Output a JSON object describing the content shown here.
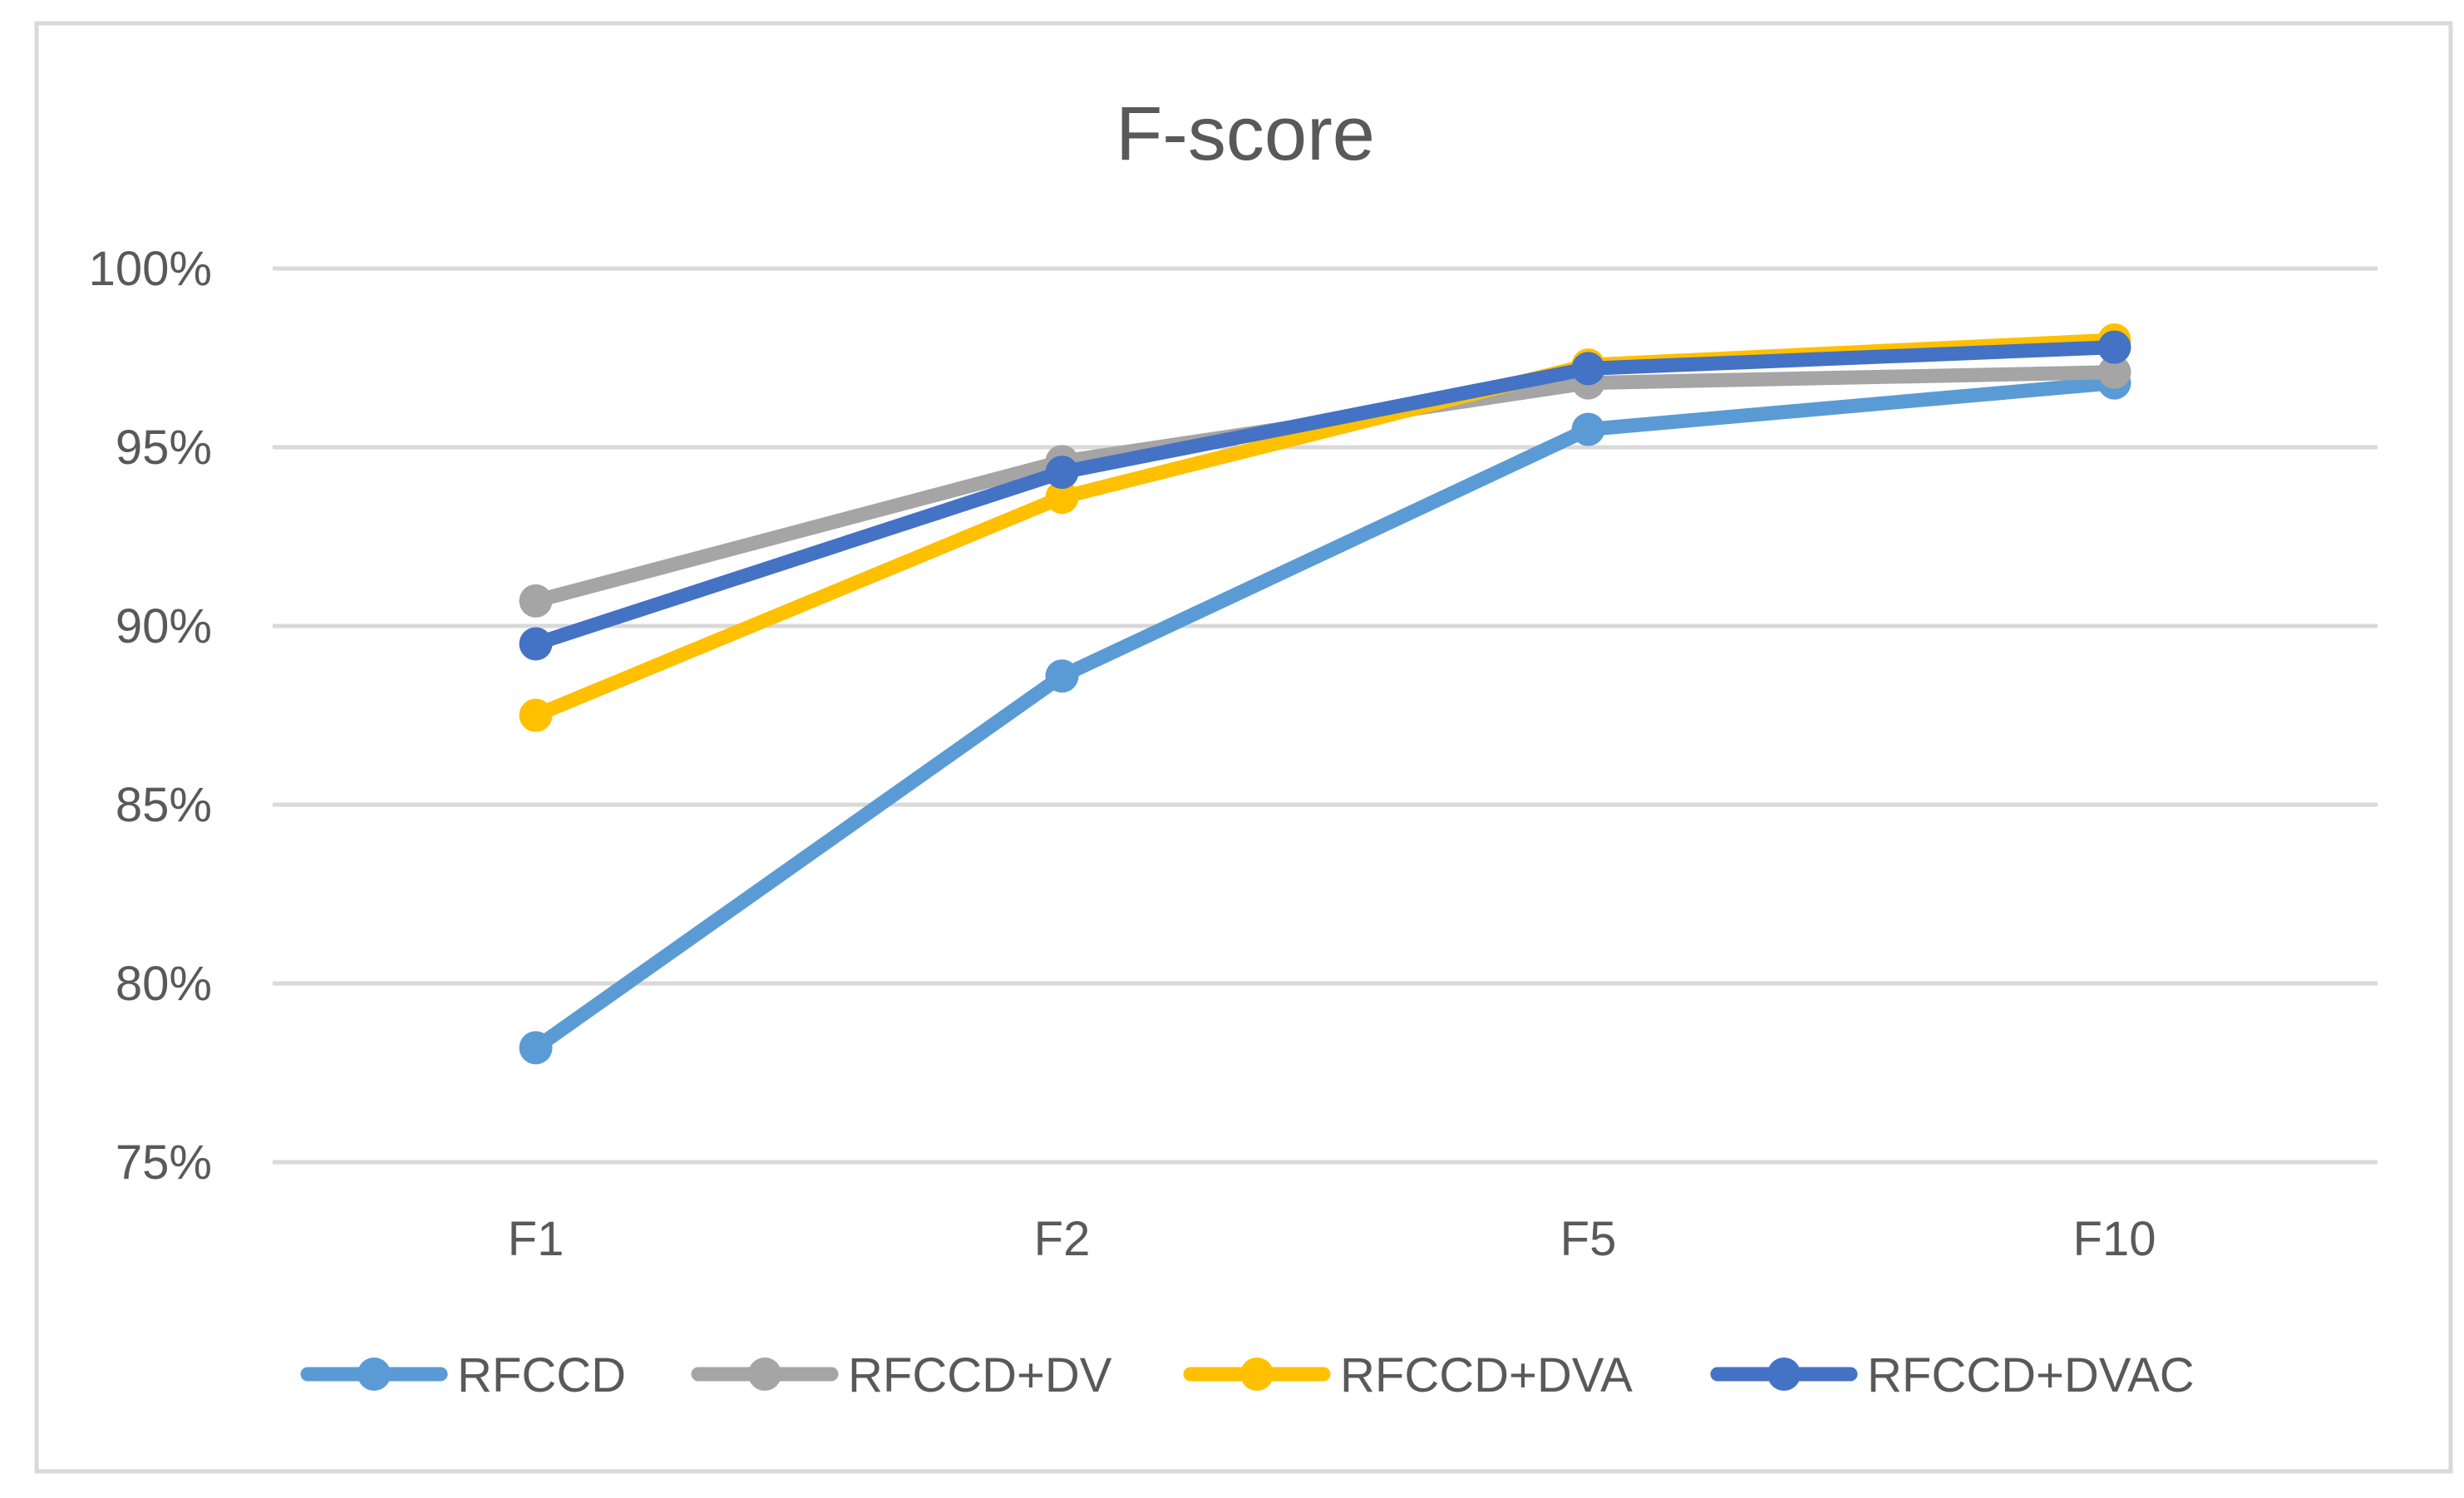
{
  "chart_data": {
    "type": "line",
    "title": "F-score",
    "categories": [
      "F1",
      "F2",
      "F5",
      "F10"
    ],
    "ylim": [
      0.75,
      1.0
    ],
    "yticks": [
      {
        "value": 0.75,
        "label": "75%"
      },
      {
        "value": 0.8,
        "label": "80%"
      },
      {
        "value": 0.85,
        "label": "85%"
      },
      {
        "value": 0.9,
        "label": "90%"
      },
      {
        "value": 0.95,
        "label": "95%"
      },
      {
        "value": 1.0,
        "label": "100%"
      }
    ],
    "grid": true,
    "legend_position": "bottom",
    "series": [
      {
        "name": "RFCCD",
        "color": "#5B9BD5",
        "values": [
          0.782,
          0.886,
          0.955,
          0.968
        ]
      },
      {
        "name": "RFCCD+DV",
        "color": "#A5A5A5",
        "values": [
          0.907,
          0.946,
          0.968,
          0.971
        ]
      },
      {
        "name": "RFCCD+DVA",
        "color": "#FFC000",
        "values": [
          0.875,
          0.936,
          0.973,
          0.98
        ]
      },
      {
        "name": "RFCCD+DVAC",
        "color": "#4472C4",
        "values": [
          0.895,
          0.943,
          0.972,
          0.978
        ]
      }
    ]
  }
}
